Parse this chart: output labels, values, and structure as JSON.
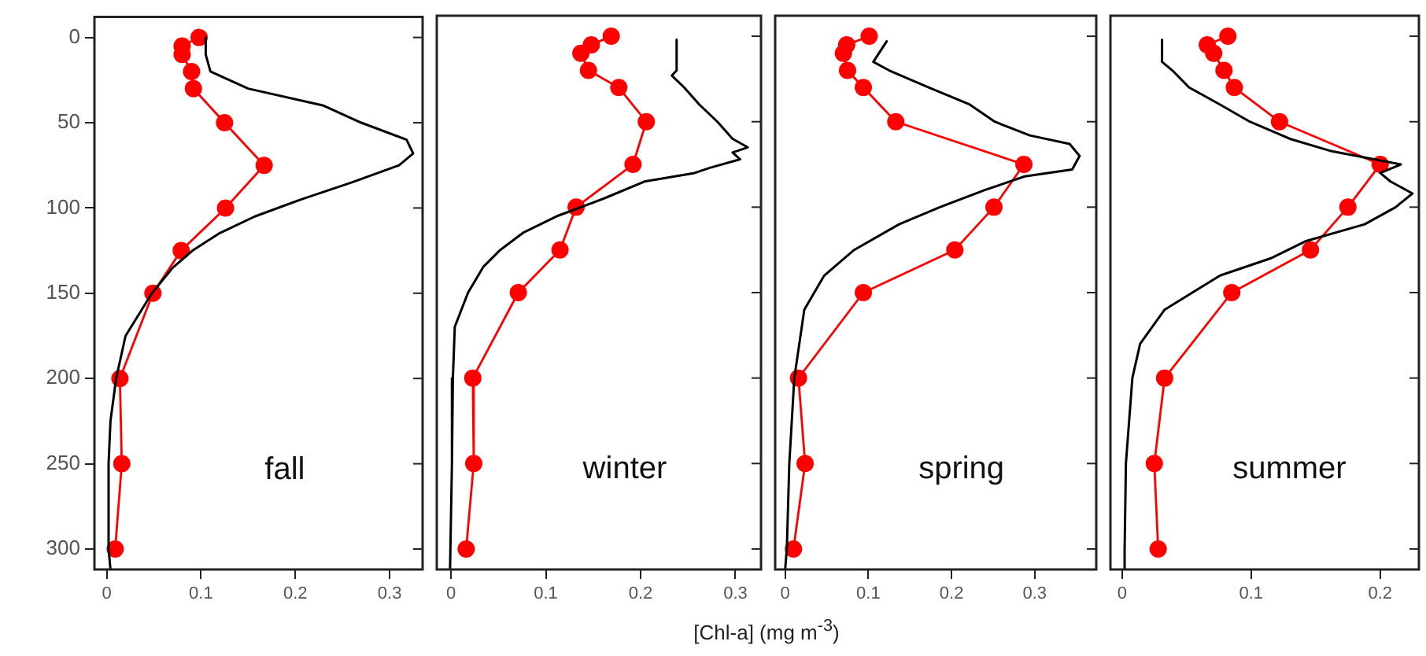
{
  "chart_data": [
    {
      "type": "line",
      "annotations": [
        "fall"
      ],
      "xlim": [
        -0.013,
        0.335
      ],
      "xticks": [
        0,
        0.1,
        0.2,
        0.3
      ],
      "ylim": [
        312,
        -12
      ],
      "yticks": [
        0,
        50,
        100,
        150,
        200,
        250,
        300
      ],
      "grid": false,
      "legend": false,
      "series": [
        {
          "type": "line",
          "color": "#000000",
          "marker": "none",
          "x": [
            0.105,
            0.105,
            0.11,
            0.15,
            0.23,
            0.27,
            0.318,
            0.325,
            0.31,
            0.26,
            0.206,
            0.157,
            0.119,
            0.091,
            0.07,
            0.048,
            0.02,
            0.01,
            0.004,
            0.002,
            0.002,
            0.004
          ],
          "values": [
            0,
            10,
            20,
            30,
            40,
            50,
            60,
            68,
            75,
            85,
            95,
            105,
            115,
            125,
            135,
            150,
            175,
            200,
            225,
            250,
            300,
            312
          ]
        },
        {
          "type": "line",
          "color": "#ff0000",
          "marker": "circle",
          "x": [
            0.098,
            0.08,
            0.08,
            0.09,
            0.092,
            0.125,
            0.167,
            0.126,
            0.079,
            0.049,
            0.014,
            0.016,
            0.009
          ],
          "values": [
            0,
            5,
            10,
            20,
            30,
            50,
            75,
            100,
            125,
            150,
            200,
            250,
            300
          ]
        }
      ]
    },
    {
      "type": "line",
      "annotations": [
        "winter"
      ],
      "xlabel": "[Chl-a] (mg m$^{-3}$)",
      "xlim": [
        -0.015,
        0.327
      ],
      "xticks": [
        0,
        0.1,
        0.2,
        0.3
      ],
      "ylim": [
        312,
        -12
      ],
      "yticks": [
        0,
        50,
        100,
        150,
        200,
        250,
        300
      ],
      "tick_labels": "x",
      "grid": false,
      "legend": false,
      "series": [
        {
          "type": "line",
          "color": "#000000",
          "marker": "none",
          "x": [
            0.238,
            0.238,
            0.233,
            0.246,
            0.262,
            0.281,
            0.297,
            0.313,
            0.297,
            0.305,
            0.273,
            0.257,
            0.204,
            0.161,
            0.113,
            0.076,
            0.052,
            0.034,
            0.018,
            0.004,
            0.002,
            0.001,
            -0.001
          ],
          "values": [
            2,
            20,
            23,
            30,
            40,
            50,
            60,
            65,
            68,
            72,
            77,
            80,
            85,
            95,
            105,
            115,
            125,
            135,
            150,
            170,
            200,
            250,
            312
          ]
        },
        {
          "type": "line",
          "color": "#ff0000",
          "marker": "circle",
          "x": [
            0.169,
            0.148,
            0.137,
            0.145,
            0.177,
            0.206,
            0.192,
            0.132,
            0.115,
            0.071,
            0.023,
            0.024,
            0.016
          ],
          "values": [
            0,
            5,
            10,
            20,
            30,
            50,
            75,
            100,
            125,
            150,
            200,
            250,
            300
          ]
        }
      ]
    },
    {
      "type": "line",
      "annotations": [
        "spring"
      ],
      "xlim": [
        -0.012,
        0.374
      ],
      "xticks": [
        0,
        0.1,
        0.2,
        0.3
      ],
      "ylim": [
        312,
        -12
      ],
      "yticks": [
        0,
        50,
        100,
        150,
        200,
        250,
        300
      ],
      "tick_labels": "x",
      "grid": false,
      "legend": false,
      "series": [
        {
          "type": "line",
          "color": "#000000",
          "marker": "none",
          "x": [
            0.122,
            0.106,
            0.125,
            0.173,
            0.222,
            0.252,
            0.294,
            0.342,
            0.354,
            0.345,
            0.288,
            0.24,
            0.186,
            0.137,
            0.083,
            0.047,
            0.023,
            0.017,
            0.011,
            0.005,
            0.002,
            0
          ],
          "values": [
            3,
            15,
            20,
            30,
            40,
            50,
            58,
            63,
            70,
            78,
            82,
            90,
            100,
            110,
            125,
            140,
            160,
            180,
            200,
            250,
            300,
            312
          ]
        },
        {
          "type": "line",
          "color": "#ff0000",
          "marker": "circle",
          "x": [
            0.101,
            0.074,
            0.07,
            0.075,
            0.094,
            0.133,
            0.287,
            0.251,
            0.204,
            0.094,
            0.016,
            0.024,
            0.01
          ],
          "values": [
            0,
            5,
            10,
            20,
            30,
            50,
            75,
            100,
            125,
            150,
            200,
            250,
            300
          ]
        }
      ]
    },
    {
      "type": "line",
      "annotations": [
        "summer"
      ],
      "xlim": [
        -0.009,
        0.23
      ],
      "xticks": [
        0,
        0.1,
        0.2
      ],
      "ylim": [
        312,
        -12
      ],
      "yticks": [
        0,
        50,
        100,
        150,
        200,
        250,
        300
      ],
      "tick_labels": "x",
      "grid": false,
      "legend": false,
      "series": [
        {
          "type": "line",
          "color": "#000000",
          "marker": "none",
          "x": [
            0.031,
            0.031,
            0.039,
            0.052,
            0.076,
            0.099,
            0.13,
            0.161,
            0.216,
            0.2,
            0.208,
            0.225,
            0.212,
            0.188,
            0.142,
            0.115,
            0.076,
            0.033,
            0.014,
            0.008,
            0.003,
            0.002,
            0.002
          ],
          "values": [
            2,
            15,
            20,
            30,
            40,
            50,
            60,
            67,
            75,
            80,
            85,
            92,
            100,
            110,
            120,
            130,
            140,
            160,
            180,
            200,
            250,
            300,
            312
          ]
        },
        {
          "type": "line",
          "color": "#ff0000",
          "marker": "circle",
          "x": [
            0.082,
            0.066,
            0.071,
            0.079,
            0.087,
            0.122,
            0.2,
            0.175,
            0.146,
            0.085,
            0.033,
            0.025,
            0.028
          ],
          "values": [
            0,
            5,
            10,
            20,
            30,
            50,
            75,
            100,
            125,
            150,
            200,
            250,
            300
          ]
        }
      ]
    }
  ]
}
